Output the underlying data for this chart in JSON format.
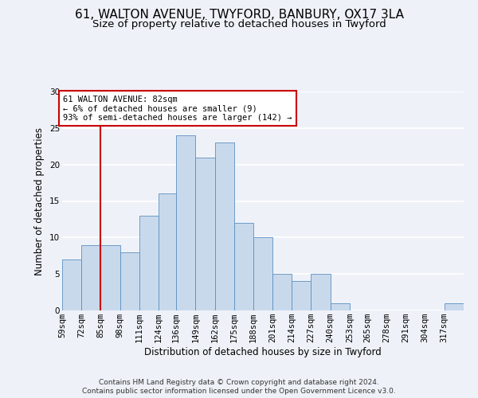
{
  "title1": "61, WALTON AVENUE, TWYFORD, BANBURY, OX17 3LA",
  "title2": "Size of property relative to detached houses in Twyford",
  "xlabel": "Distribution of detached houses by size in Twyford",
  "ylabel": "Number of detached properties",
  "bar_labels": [
    "59sqm",
    "72sqm",
    "85sqm",
    "98sqm",
    "111sqm",
    "124sqm",
    "136sqm",
    "149sqm",
    "162sqm",
    "175sqm",
    "188sqm",
    "201sqm",
    "214sqm",
    "227sqm",
    "240sqm",
    "253sqm",
    "265sqm",
    "278sqm",
    "291sqm",
    "304sqm",
    "317sqm"
  ],
  "bar_values": [
    7,
    9,
    9,
    8,
    13,
    16,
    24,
    21,
    23,
    12,
    10,
    5,
    4,
    5,
    1,
    0,
    0,
    0,
    0,
    0,
    1
  ],
  "bar_color": "#c9d9ec",
  "bar_edge_color": "#5a8fc0",
  "bin_edges": [
    59,
    72,
    85,
    98,
    111,
    124,
    136,
    149,
    162,
    175,
    188,
    201,
    214,
    227,
    240,
    253,
    265,
    278,
    291,
    304,
    317,
    330
  ],
  "annotation_text": "61 WALTON AVENUE: 82sqm\n← 6% of detached houses are smaller (9)\n93% of semi-detached houses are larger (142) →",
  "annotation_box_color": "#ffffff",
  "annotation_box_edge": "#cc0000",
  "red_line_color": "#cc0000",
  "ylim": [
    0,
    30
  ],
  "yticks": [
    0,
    5,
    10,
    15,
    20,
    25,
    30
  ],
  "footer1": "Contains HM Land Registry data © Crown copyright and database right 2024.",
  "footer2": "Contains public sector information licensed under the Open Government Licence v3.0.",
  "bg_color": "#eef2f8",
  "grid_color": "#ffffff",
  "title_fontsize": 11,
  "subtitle_fontsize": 9.5,
  "axis_label_fontsize": 8.5,
  "tick_fontsize": 7.5,
  "footer_fontsize": 6.5
}
